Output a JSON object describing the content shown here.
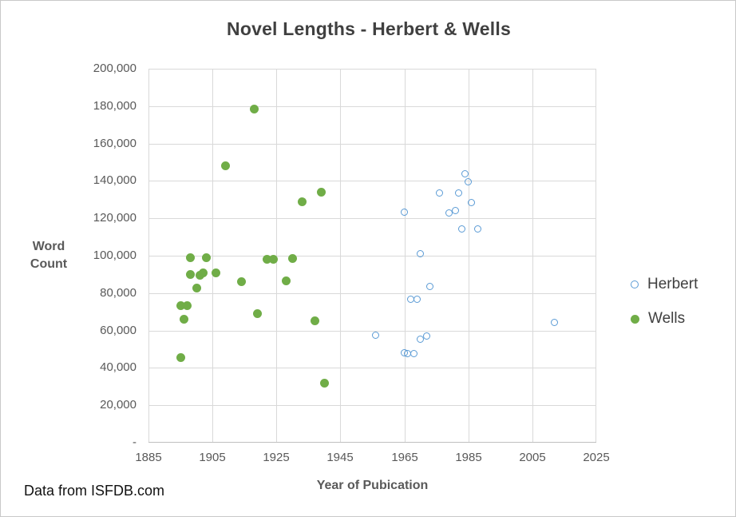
{
  "window": {
    "background": "#ffffff",
    "border_color": "#c9c9c9"
  },
  "styles": {
    "title_color": "#404040",
    "axis_text_color": "#595959",
    "gridline_color": "#d9d9d9",
    "axis_line_color": "#bfbfbf",
    "note_color": "#111111"
  },
  "chart_data": {
    "type": "scatter",
    "title": "Novel Lengths - Herbert & Wells",
    "xlabel": "Year of Pubication",
    "ylabel": "Word Count",
    "source_note": "Data from ISFDB.com",
    "xlim": [
      1885,
      2025
    ],
    "ylim": [
      0,
      200000
    ],
    "grid": true,
    "legend_position": "right",
    "x_ticks": [
      {
        "value": 1885,
        "label": "1885"
      },
      {
        "value": 1905,
        "label": "1905"
      },
      {
        "value": 1925,
        "label": "1925"
      },
      {
        "value": 1945,
        "label": "1945"
      },
      {
        "value": 1965,
        "label": "1965"
      },
      {
        "value": 1985,
        "label": "1985"
      },
      {
        "value": 2005,
        "label": "2005"
      },
      {
        "value": 2025,
        "label": "2025"
      }
    ],
    "y_ticks": [
      {
        "value": 0,
        "label": "-"
      },
      {
        "value": 20000,
        "label": "20,000"
      },
      {
        "value": 40000,
        "label": "40,000"
      },
      {
        "value": 60000,
        "label": "60,000"
      },
      {
        "value": 80000,
        "label": "80,000"
      },
      {
        "value": 100000,
        "label": "100,000"
      },
      {
        "value": 120000,
        "label": "120,000"
      },
      {
        "value": 140000,
        "label": "140,000"
      },
      {
        "value": 160000,
        "label": "160,000"
      },
      {
        "value": 180000,
        "label": "180,000"
      },
      {
        "value": 200000,
        "label": "200,000"
      }
    ],
    "series": [
      {
        "name": "Herbert",
        "marker": "open-circle",
        "color": "#5b9bd5",
        "points": [
          [
            1956,
            57500
          ],
          [
            1965,
            123500
          ],
          [
            1965,
            48000
          ],
          [
            1966,
            47500
          ],
          [
            1968,
            47500
          ],
          [
            1967,
            76500
          ],
          [
            1969,
            76500
          ],
          [
            1970,
            55500
          ],
          [
            1972,
            57000
          ],
          [
            1970,
            101000
          ],
          [
            1973,
            83500
          ],
          [
            1976,
            133500
          ],
          [
            1979,
            123000
          ],
          [
            1981,
            124000
          ],
          [
            1982,
            133500
          ],
          [
            1983,
            114500
          ],
          [
            1984,
            144000
          ],
          [
            1985,
            139500
          ],
          [
            1986,
            128500
          ],
          [
            1988,
            114500
          ],
          [
            2012,
            64500
          ]
        ]
      },
      {
        "name": "Wells",
        "marker": "filled-circle",
        "color": "#70ad47",
        "points": [
          [
            1895,
            45500
          ],
          [
            1895,
            73500
          ],
          [
            1896,
            66000
          ],
          [
            1897,
            73500
          ],
          [
            1898,
            90000
          ],
          [
            1898,
            99000
          ],
          [
            1900,
            82500
          ],
          [
            1901,
            89500
          ],
          [
            1902,
            91000
          ],
          [
            1903,
            99000
          ],
          [
            1906,
            91000
          ],
          [
            1909,
            148000
          ],
          [
            1914,
            86000
          ],
          [
            1918,
            178500
          ],
          [
            1919,
            69000
          ],
          [
            1922,
            98000
          ],
          [
            1924,
            98000
          ],
          [
            1928,
            86500
          ],
          [
            1930,
            98500
          ],
          [
            1933,
            129000
          ],
          [
            1937,
            65000
          ],
          [
            1939,
            134000
          ],
          [
            1940,
            32000
          ]
        ]
      }
    ]
  }
}
